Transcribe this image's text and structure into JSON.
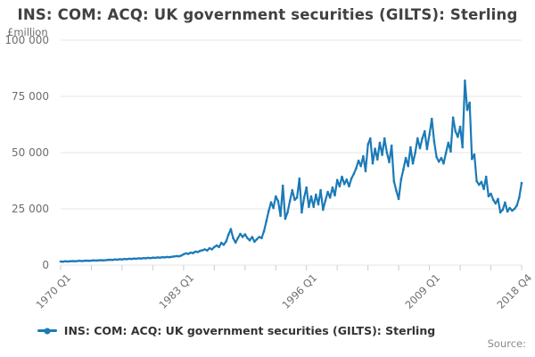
{
  "title": "INS: COM: ACQ: UK government securities (GILTS): Sterling",
  "y_axis": {
    "unit_label": "£million",
    "tick_labels": [
      "100 000",
      "75 000",
      "50 000",
      "25 000",
      "0"
    ]
  },
  "x_axis": {
    "tick_labels": [
      "1970 Q1",
      "1983 Q1",
      "1996 Q1",
      "2009 Q1",
      "2018 Q4"
    ],
    "minor_tick_count": 16
  },
  "legend": {
    "label": "INS: COM: ACQ: UK government securities (GILTS): Sterling"
  },
  "source": {
    "label": "Source:"
  },
  "colors": {
    "series": "#1b7ab8",
    "gridline": "#e4e4e4",
    "tick": "#cccccc",
    "title": "#414042",
    "axis_label": "#6e6e6e"
  },
  "chart_data": {
    "type": "line",
    "title": "INS: COM: ACQ: UK government securities (GILTS): Sterling",
    "ylabel": "£million",
    "ylim": [
      0,
      100000
    ],
    "y_tick_values": [
      0,
      25000,
      50000,
      75000,
      100000
    ],
    "x_start": "1970 Q1",
    "x_end": "2018 Q4",
    "frequency": "quarterly",
    "x_tick_labels": [
      "1970 Q1",
      "1983 Q1",
      "1996 Q1",
      "2009 Q1",
      "2018 Q4"
    ],
    "legend_position": "bottom",
    "grid": true,
    "series": [
      {
        "name": "INS: COM: ACQ: UK government securities (GILTS): Sterling",
        "values": [
          1600,
          1500,
          1700,
          1600,
          1700,
          1800,
          1700,
          1800,
          1900,
          1800,
          1900,
          2000,
          1900,
          2000,
          2100,
          2000,
          2100,
          2200,
          2100,
          2200,
          2300,
          2400,
          2300,
          2500,
          2400,
          2600,
          2500,
          2700,
          2600,
          2800,
          2700,
          2900,
          2800,
          3000,
          2900,
          3100,
          3000,
          3200,
          3100,
          3300,
          3200,
          3400,
          3300,
          3500,
          3400,
          3600,
          3500,
          3700,
          3800,
          4000,
          3900,
          4200,
          4800,
          5200,
          5000,
          5500,
          5300,
          6000,
          5800,
          6300,
          6600,
          7000,
          6500,
          7500,
          7000,
          8000,
          8700,
          8000,
          9900,
          9000,
          10500,
          13500,
          16000,
          12000,
          10000,
          12000,
          13900,
          12500,
          13700,
          12000,
          11000,
          12500,
          10400,
          11500,
          12500,
          12000,
          15000,
          19500,
          24000,
          27900,
          25400,
          30500,
          28500,
          21900,
          35300,
          20600,
          23400,
          28600,
          33300,
          29000,
          30000,
          38500,
          23400,
          30000,
          34500,
          25900,
          30500,
          25900,
          31300,
          27000,
          33300,
          24600,
          28600,
          32500,
          30000,
          34500,
          31000,
          37800,
          35000,
          39300,
          36000,
          38000,
          35000,
          38500,
          40500,
          43000,
          46400,
          44000,
          48400,
          41800,
          53700,
          56300,
          45200,
          51700,
          47000,
          54400,
          49000,
          56300,
          50000,
          45800,
          53100,
          37300,
          33000,
          29400,
          38000,
          42500,
          47600,
          44000,
          52400,
          45200,
          50000,
          56300,
          52000,
          56300,
          59500,
          51600,
          58000,
          65000,
          55000,
          48000,
          46000,
          47600,
          45200,
          50000,
          54400,
          50500,
          65600,
          59500,
          57000,
          61500,
          52400,
          82000,
          69000,
          72200,
          47200,
          49200,
          37300,
          35700,
          37000,
          33800,
          39300,
          30600,
          31700,
          29000,
          27400,
          29400,
          23400,
          24600,
          27800,
          23800,
          25400,
          24200,
          25000,
          26500,
          30000,
          36500
        ]
      }
    ]
  }
}
